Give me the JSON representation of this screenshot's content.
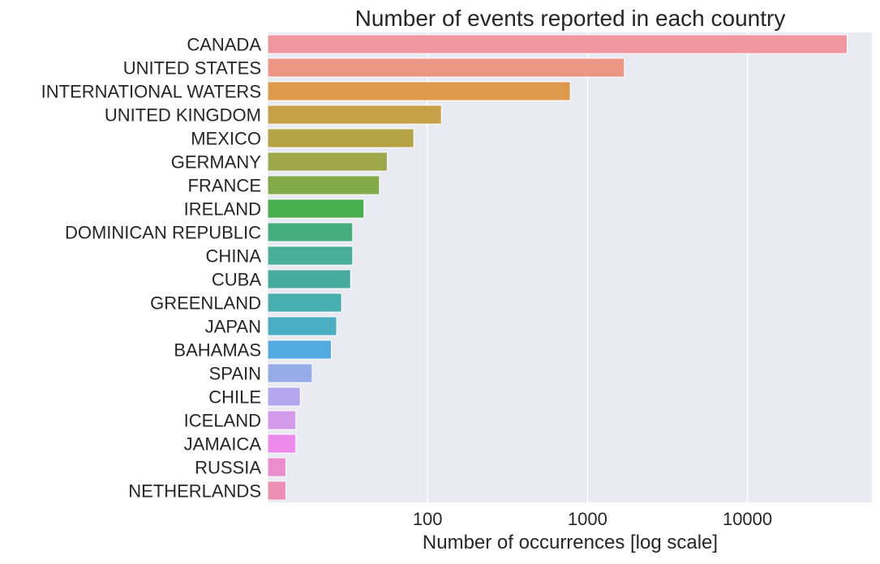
{
  "chart_data": {
    "type": "bar",
    "orientation": "horizontal",
    "title": "Number of events reported in each country",
    "xlabel": "Number of occurrences [log scale]",
    "ylabel": "",
    "xscale": "log",
    "xlim": [
      10,
      60000
    ],
    "xticks": [
      100,
      1000,
      10000
    ],
    "xtick_labels": [
      "100",
      "1000",
      "10000"
    ],
    "grid": true,
    "categories": [
      "CANADA",
      "UNITED STATES",
      "INTERNATIONAL WATERS",
      "UNITED KINGDOM",
      "MEXICO",
      "GERMANY",
      "FRANCE",
      "IRELAND",
      "DOMINICAN REPUBLIC",
      "CHINA",
      "CUBA",
      "GREENLAND",
      "JAPAN",
      "BAHAMAS",
      "SPAIN",
      "CHILE",
      "ICELAND",
      "JAMAICA",
      "RUSSIA",
      "NETHERLANDS"
    ],
    "values": [
      42000,
      1700,
      780,
      122,
      82,
      56,
      50,
      40,
      34,
      34,
      33,
      29,
      27,
      25,
      19,
      16,
      15,
      15,
      13,
      13
    ],
    "colors": [
      "#ef97a1",
      "#eb9783",
      "#dd9a4c",
      "#c6a047",
      "#b4a347",
      "#9ea74a",
      "#82aa4a",
      "#49ae4e",
      "#47ad80",
      "#48ae97",
      "#47ac9f",
      "#48aeae",
      "#4badc2",
      "#55abdf",
      "#96ace9",
      "#b4a6ed",
      "#d19bea",
      "#ec8beb",
      "#e98dcd",
      "#eb8fb4"
    ]
  }
}
